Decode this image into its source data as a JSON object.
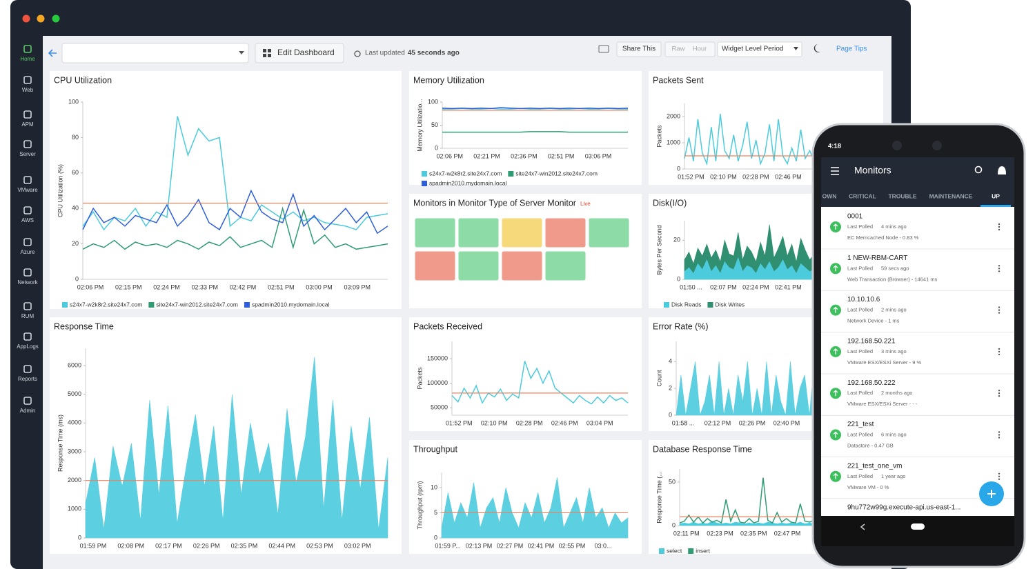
{
  "sidebar": {
    "items": [
      "Home",
      "Web",
      "APM",
      "Server",
      "VMware",
      "AWS",
      "Azure",
      "Network",
      "RUM",
      "AppLogs",
      "Reports",
      "Admin"
    ]
  },
  "toolbar": {
    "edit": "Edit Dashboard",
    "updated_label": "Last updated",
    "updated_value": "45 seconds ago",
    "share": "Share This",
    "raw": "Raw",
    "hour": "Hour",
    "period": "Widget Level Period",
    "tips": "Page Tips"
  },
  "widgets": [
    {
      "title": "CPU Utilization",
      "chart": {
        "type": "line",
        "y_label": "CPU Utilization (%)",
        "ylim": [
          0,
          100
        ],
        "yticks": [
          0,
          20,
          40,
          60,
          80,
          100
        ],
        "threshold": 43,
        "x_labels": [
          "02:06 PM",
          "02:15 PM",
          "02:24 PM",
          "02:33 PM",
          "02:42 PM",
          "02:51 PM",
          "03:00 PM",
          "03:09 PM"
        ],
        "series": [
          {
            "name": "s24x7-w2k8r2.site24x7.com",
            "color": "#4ccbdc",
            "values": [
              30,
              38,
              28,
              35,
              33,
              40,
              30,
              38,
              35,
              92,
              70,
              85,
              78,
              80,
              30,
              35,
              33,
              42,
              38,
              34,
              38,
              33,
              35,
              32,
              31,
              30,
              28,
              35,
              36,
              37
            ]
          },
          {
            "name": "site24x7-win2012.site24x7.com",
            "color": "#2f9c74",
            "values": [
              17,
              20,
              18,
              22,
              17,
              21,
              19,
              20,
              18,
              22,
              20,
              17,
              21,
              19,
              24,
              18,
              20,
              22,
              18,
              40,
              18,
              39,
              20,
              25,
              18,
              20,
              17,
              18,
              19,
              20
            ]
          },
          {
            "name": "spadmin2010.mydomain.local",
            "color": "#2f5fd8",
            "values": [
              28,
              40,
              32,
              35,
              30,
              36,
              34,
              32,
              42,
              30,
              36,
              45,
              32,
              28,
              40,
              35,
              50,
              38,
              34,
              32,
              48,
              30,
              36,
              28,
              34,
              40,
              32,
              38,
              26,
              30
            ]
          }
        ]
      }
    },
    {
      "title": "Memory Utilization",
      "chart": {
        "type": "line",
        "y_label": "Memory Utilizatio...",
        "ylim": [
          0,
          100
        ],
        "yticks": [
          0,
          50,
          100
        ],
        "threshold": 82,
        "x_labels": [
          "02:06 PM",
          "02:21 PM",
          "02:36 PM",
          "02:51 PM",
          "03:06 PM"
        ],
        "series": [
          {
            "name": "s24x7-w2k8r2.site24x7.com",
            "color": "#4ccbdc",
            "values": [
              85,
              85,
              86,
              85,
              85,
              86,
              85,
              85,
              86,
              85,
              85,
              86,
              85,
              85,
              86,
              85,
              85,
              86,
              85,
              85
            ]
          },
          {
            "name": "site24x7-win2012.site24x7.com",
            "color": "#2f9c74",
            "values": [
              35,
              35,
              35,
              35,
              35,
              35,
              35,
              35,
              35,
              36,
              36,
              36,
              36,
              35,
              35,
              35,
              35,
              35,
              35,
              35
            ]
          },
          {
            "name": "spadmin2010.mydomain.local",
            "color": "#2f5fd8",
            "values": [
              87,
              86,
              87,
              86,
              87,
              86,
              88,
              87,
              86,
              87,
              86,
              87,
              86,
              87,
              86,
              87,
              86,
              87,
              86,
              87
            ]
          }
        ]
      }
    },
    {
      "title": "Packets Sent",
      "chart": {
        "type": "line",
        "y_label": "Packets",
        "ylim": [
          0,
          2500
        ],
        "yticks": [
          0,
          1000,
          2000
        ],
        "threshold": 500,
        "x_labels": [
          "01:52 PM",
          "02:10 PM",
          "02:28 PM",
          "02:46 PM"
        ],
        "series": [
          {
            "color": "#4ccbdc",
            "values": [
              400,
              1200,
              300,
              1900,
              600,
              200,
              1600,
              300,
              2100,
              700,
              400,
              1300,
              300,
              900,
              1800,
              400,
              1100,
              200,
              600,
              1700,
              300,
              1900,
              500,
              200,
              800,
              300,
              1500,
              400,
              700,
              300
            ]
          }
        ]
      }
    },
    {
      "title": "Monitors in Monitor Type of Server Monitor",
      "live": "Live",
      "tiles": [
        "#8ddba6",
        "#8ddba6",
        "#f5d97a",
        "#ef9a8a",
        "#8ddba6",
        "#ef9a8a",
        "#8ddba6",
        "#ef9a8a",
        "#8ddba6"
      ]
    },
    {
      "title": "Disk(I/O)",
      "chart": {
        "type": "area",
        "y_label": "Bytes Per Second",
        "ylim": [
          0,
          30
        ],
        "yticks": [
          0,
          20
        ],
        "x_labels": [
          "01:50 ...",
          "02:07 PM",
          "02:24 PM",
          "02:41 PM"
        ],
        "series": [
          {
            "name": "Disk Reads",
            "color": "#4ccbdc",
            "values": [
              4,
              6,
              3,
              8,
              5,
              10,
              4,
              7,
              3,
              9,
              6,
              5,
              11,
              4,
              7,
              6,
              3,
              8,
              5,
              9,
              4,
              6,
              10,
              5,
              7,
              3,
              8,
              6,
              4,
              5
            ]
          },
          {
            "name": "Disk Writes",
            "color": "#2f8f70",
            "values": [
              10,
              14,
              8,
              16,
              12,
              18,
              11,
              15,
              9,
              20,
              13,
              12,
              24,
              10,
              17,
              14,
              9,
              19,
              12,
              28,
              11,
              16,
              22,
              12,
              18,
              9,
              21,
              15,
              10,
              13
            ]
          }
        ]
      }
    },
    {
      "title": "Response Time",
      "chart": {
        "type": "area",
        "y_label": "Response Time (ms)",
        "ylim": [
          0,
          6600
        ],
        "yticks": [
          0,
          1000,
          2000,
          3000,
          4000,
          5000,
          6000
        ],
        "threshold": 2000,
        "x_labels": [
          "01:59 PM",
          "02:08 PM",
          "02:17 PM",
          "02:26 PM",
          "02:35 PM",
          "02:44 PM",
          "02:53 PM",
          "03:02 PM"
        ],
        "series": [
          {
            "color": "#5ccfe0",
            "values": [
              1200,
              2800,
              300,
              3200,
              1800,
              3300,
              600,
              4800,
              1500,
              4600,
              500,
              2500,
              4300,
              1800,
              3900,
              600,
              5000,
              1500,
              4000,
              2200,
              3300,
              800,
              4500,
              1900,
              3500,
              6300,
              1000,
              4800,
              600,
              3900,
              1700,
              4200,
              300,
              2800
            ]
          }
        ]
      }
    },
    {
      "title": "Packets Received",
      "chart": {
        "type": "line",
        "y_label": "Packets",
        "ylim": [
          35000,
          185000
        ],
        "yticks": [
          50000,
          100000,
          150000
        ],
        "threshold": 80000,
        "x_labels": [
          "01:52 PM",
          "02:10 PM",
          "02:28 PM",
          "02:46 PM",
          "03:04 PM"
        ],
        "series": [
          {
            "color": "#4ccbdc",
            "values": [
              75000,
              62000,
              90000,
              70000,
              95000,
              60000,
              80000,
              72000,
              88000,
              65000,
              78000,
              70000,
              145000,
              110000,
              130000,
              100000,
              125000,
              90000,
              80000,
              70000,
              60000,
              75000,
              65000,
              58000,
              72000,
              60000,
              75000,
              65000,
              70000,
              60000
            ]
          }
        ]
      }
    },
    {
      "title": "Throughput",
      "chart": {
        "type": "area",
        "y_label": "Throughput (rpm)",
        "ylim": [
          0,
          13
        ],
        "yticks": [
          0,
          5,
          10
        ],
        "threshold": 5,
        "x_labels": [
          "01:59 P...",
          "02:13 PM",
          "02:27 PM",
          "02:41 PM",
          "02:55 PM",
          "03:0..."
        ],
        "series": [
          {
            "color": "#5ccfe0",
            "values": [
              2,
              9,
              3,
              7,
              4,
              11,
              2,
              6,
              8,
              3,
              10,
              5,
              2,
              7,
              4,
              9,
              3,
              6,
              12,
              2,
              5,
              8,
              3,
              10,
              4,
              6,
              2,
              5,
              3,
              4
            ]
          }
        ]
      }
    },
    {
      "title": "Error Rate (%)",
      "chart": {
        "type": "area",
        "y_label": "Count",
        "ylim": [
          0,
          5.5
        ],
        "yticks": [
          0,
          2,
          4
        ],
        "x_labels": [
          "01:58 ...",
          "02:12 PM",
          "02:26 PM",
          "02:40 PM"
        ],
        "series": [
          {
            "color": "#5ccfe0",
            "values": [
              0,
              3,
              0,
              2,
              4,
              0,
              1,
              3,
              0,
              4,
              0,
              2,
              0,
              3,
              1,
              4,
              0,
              2,
              0,
              4,
              0,
              3,
              1,
              0,
              4,
              0,
              2,
              3,
              0,
              4
            ]
          }
        ]
      }
    },
    {
      "title": "Database Response Time",
      "chart": {
        "type": "line",
        "y_label": "Response Time (...",
        "ylim": [
          0,
          65
        ],
        "yticks": [
          0,
          50
        ],
        "threshold": 10,
        "x_labels": [
          "02:11 PM",
          "02:23 PM",
          "02:35 PM",
          "02:47 PM"
        ],
        "series": [
          {
            "name": "select",
            "type": "area",
            "color": "#4ccbdc",
            "values": [
              2,
              3,
              2,
              4,
              2,
              3,
              2,
              5,
              3,
              2,
              3,
              2,
              4,
              3,
              2,
              3,
              2,
              3,
              2,
              4,
              3,
              2,
              3,
              2,
              3,
              2,
              4,
              2,
              3,
              2
            ]
          },
          {
            "name": "insert",
            "type": "line",
            "color": "#2f9c74",
            "values": [
              3,
              5,
              12,
              4,
              10,
              3,
              8,
              4,
              6,
              3,
              30,
              5,
              18,
              4,
              3,
              8,
              3,
              5,
              55,
              6,
              3,
              15,
              4,
              8,
              4,
              3,
              25,
              5,
              4,
              6
            ]
          }
        ]
      }
    }
  ],
  "phone": {
    "time": "4:18",
    "title": "Monitors",
    "tabs": [
      "OWN",
      "CRITICAL",
      "TROUBLE",
      "MAINTENANCE",
      "UP"
    ],
    "active_tab": 4,
    "items": [
      {
        "name": "0001",
        "label": "Last Polled",
        "time": "4 mins ago",
        "detail": "EC Memcached Node - 0.83 %"
      },
      {
        "name": "1 NEW-RBM-CART",
        "label": "Last Polled",
        "time": "59 secs ago",
        "detail": "Web Transaction (Browser) - 14641 ms"
      },
      {
        "name": "10.10.10.6",
        "label": "Last Polled",
        "time": "2 mins ago",
        "detail": "Network Device - 1 ms"
      },
      {
        "name": "192.168.50.221",
        "label": "Last Polled",
        "time": "3 mins ago",
        "detail": "VMware ESX/ESXi Server - 9 %"
      },
      {
        "name": "192.168.50.222",
        "label": "Last Polled",
        "time": "2 months ago",
        "detail": "VMware ESX/ESXi Server - - -"
      },
      {
        "name": "221_test",
        "label": "Last Polled",
        "time": "6 mins ago",
        "detail": "Datastore - 0.47 GB"
      },
      {
        "name": "221_test_one_vm",
        "label": "Last Polled",
        "time": "1 year ago",
        "detail": "VMware VM - 0 %"
      },
      {
        "name": "9hu772w99g.execute-api.us-east-1..."
      }
    ]
  }
}
